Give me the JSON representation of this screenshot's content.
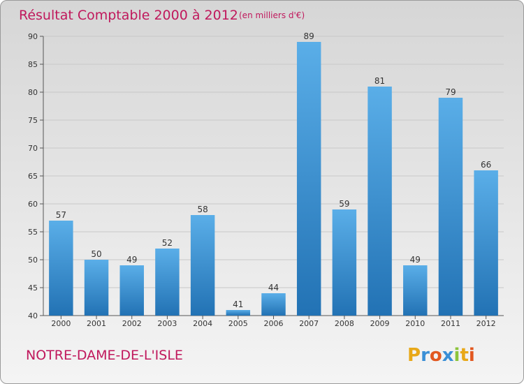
{
  "chart_data": {
    "type": "bar",
    "title": "Résultat Comptable 2000 à 2012",
    "subtitle": "(en milliers d'€)",
    "categories": [
      "2000",
      "2001",
      "2002",
      "2003",
      "2004",
      "2005",
      "2006",
      "2007",
      "2008",
      "2009",
      "2010",
      "2011",
      "2012"
    ],
    "values": [
      57,
      50,
      49,
      52,
      58,
      41,
      44,
      89,
      59,
      81,
      49,
      79,
      66
    ],
    "ylim": [
      40,
      90
    ],
    "yticks": [
      40,
      45,
      50,
      55,
      60,
      65,
      70,
      75,
      80,
      85,
      90
    ],
    "grid": true,
    "colors": {
      "bar_top": "#5aaee8",
      "bar_bottom": "#2272b4",
      "grid": "#c8c8c8"
    }
  },
  "town": "NOTRE-DAME-DE-L'ISLE",
  "brand": {
    "letters": [
      {
        "ch": "P",
        "color": "#e8a818"
      },
      {
        "ch": "r",
        "color": "#3a8fd6"
      },
      {
        "ch": "o",
        "color": "#e2571f"
      },
      {
        "ch": "x",
        "color": "#3a8fd6"
      },
      {
        "ch": "i",
        "color": "#8cc43c"
      },
      {
        "ch": "t",
        "color": "#e8a818"
      },
      {
        "ch": "i",
        "color": "#e2571f"
      }
    ]
  }
}
